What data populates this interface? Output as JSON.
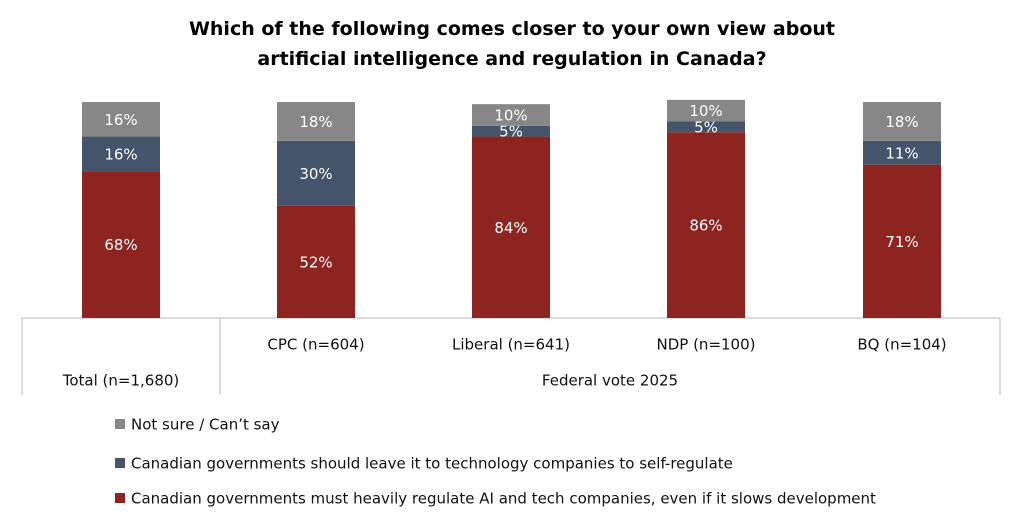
{
  "chart_data": {
    "type": "stacked-bar",
    "title": "Which of the following comes closer to your own view about artificial intelligence and regulation in Canada?",
    "categories": [
      "Total (n=1,680)",
      "CPC (n=604)",
      "Liberal (n=641)",
      "NDP (n=100)",
      "BQ (n=104)"
    ],
    "group_label": "Federal vote 2025",
    "series": [
      {
        "name": "Canadian governments must heavily regulate AI and tech companies, even if it slows development",
        "color": "#8e2420",
        "values": [
          68,
          52,
          84,
          86,
          71
        ],
        "value_labels": [
          "68%",
          "52%",
          "84%",
          "86%",
          "71%"
        ]
      },
      {
        "name": "Canadian governments should leave it to technology companies to self-regulate",
        "color": "#44546a",
        "values": [
          16,
          30,
          5,
          5,
          11
        ],
        "value_labels": [
          "16%",
          "30%",
          "5%",
          "5%",
          "11%"
        ]
      },
      {
        "name": "Not sure / Can’t say",
        "color": "#878787",
        "values": [
          16,
          18,
          10,
          10,
          18
        ],
        "value_labels": [
          "16%",
          "18%",
          "10%",
          "10%",
          "18%"
        ]
      }
    ]
  }
}
